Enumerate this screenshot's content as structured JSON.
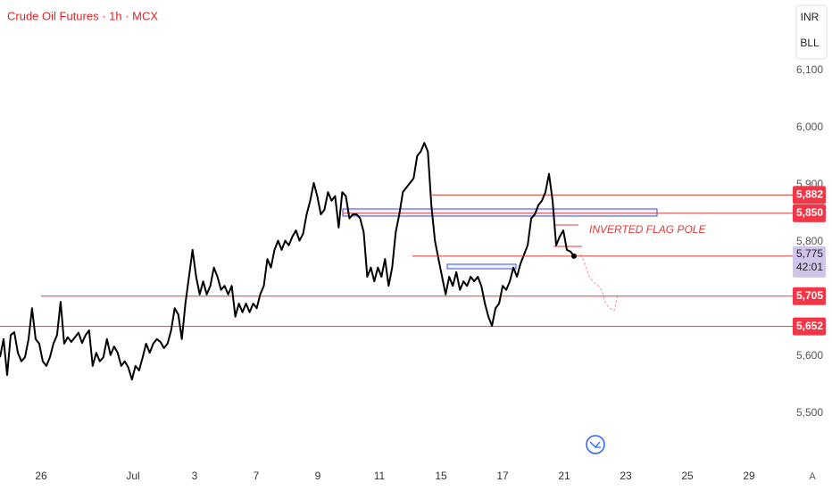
{
  "chart_data": {
    "type": "line",
    "title": "Crude Oil Futures · 1h · MCX",
    "currency": "INR",
    "unit": "BLL",
    "scale_mode": "A",
    "color": "#000000",
    "ylim": [
      5411,
      6223
    ],
    "yticks": [
      {
        "value": 5500,
        "label": "5,500"
      },
      {
        "value": 5600,
        "label": "5,600"
      },
      {
        "value": 5800,
        "label": "5,800"
      },
      {
        "value": 5900,
        "label": "5,900"
      },
      {
        "value": 6000,
        "label": "6,000"
      },
      {
        "value": 6100,
        "label": "6,100"
      }
    ],
    "xtick_labels": [
      "26",
      "Jul",
      "3",
      "7",
      "9",
      "11",
      "15",
      "17",
      "21",
      "23",
      "25",
      "29"
    ],
    "values": [
      5598,
      5630,
      5567,
      5637,
      5642,
      5606,
      5591,
      5598,
      5630,
      5684,
      5630,
      5622,
      5591,
      5583,
      5598,
      5622,
      5637,
      5695,
      5622,
      5633,
      5625,
      5633,
      5641,
      5623,
      5637,
      5645,
      5583,
      5606,
      5591,
      5598,
      5630,
      5602,
      5617,
      5606,
      5583,
      5591,
      5580,
      5559,
      5583,
      5575,
      5598,
      5622,
      5606,
      5622,
      5630,
      5625,
      5614,
      5622,
      5645,
      5684,
      5673,
      5630,
      5692,
      5739,
      5786,
      5739,
      5708,
      5731,
      5708,
      5723,
      5755,
      5739,
      5716,
      5723,
      5708,
      5723,
      5669,
      5692,
      5677,
      5692,
      5677,
      5692,
      5684,
      5708,
      5723,
      5770,
      5755,
      5786,
      5802,
      5786,
      5802,
      5794,
      5809,
      5820,
      5802,
      5814,
      5848,
      5872,
      5903,
      5880,
      5848,
      5856,
      5887,
      5872,
      5880,
      5825,
      5887,
      5880,
      5841,
      5848,
      5848,
      5841,
      5817,
      5739,
      5755,
      5731,
      5755,
      5739,
      5770,
      5723,
      5755,
      5817,
      5848,
      5887,
      5895,
      5903,
      5911,
      5950,
      5958,
      5973,
      5958,
      5864,
      5802,
      5770,
      5739,
      5708,
      5739,
      5723,
      5747,
      5716,
      5731,
      5723,
      5739,
      5731,
      5739,
      5723,
      5692,
      5669,
      5653,
      5684,
      5692,
      5723,
      5716,
      5731,
      5755,
      5739,
      5762,
      5778,
      5794,
      5841,
      5848,
      5864,
      5872,
      5887,
      5919,
      5872,
      5794,
      5809,
      5820,
      5786,
      5783,
      5775
    ],
    "levels": [
      {
        "value": 5882,
        "label": "5,882"
      },
      {
        "value": 5850,
        "label": "5,850"
      },
      {
        "value": 5705,
        "label": "5,705"
      },
      {
        "value": 5652,
        "label": "5,652"
      }
    ],
    "last_price": {
      "value": 5775,
      "label": "5,775",
      "countdown": "42:01"
    },
    "annotation": "INVERTED FLAG POLE"
  }
}
